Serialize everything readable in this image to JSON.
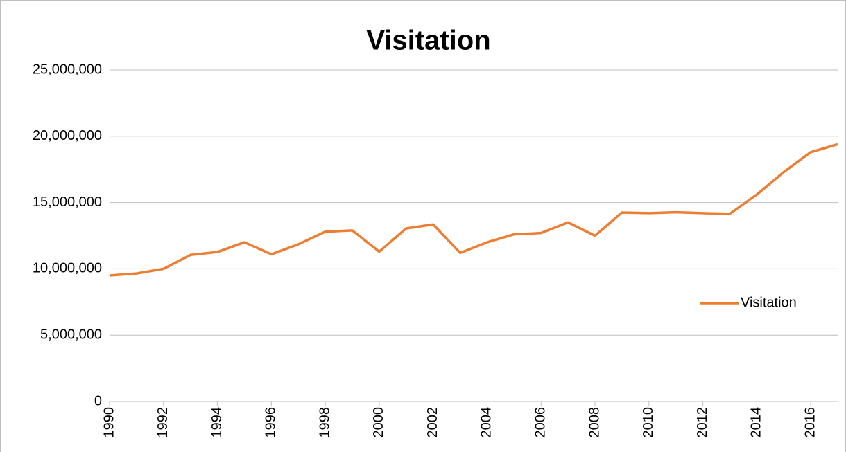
{
  "chart_data": {
    "type": "line",
    "title": "Visitation",
    "x": [
      1990,
      1991,
      1992,
      1993,
      1994,
      1995,
      1996,
      1997,
      1998,
      1999,
      2000,
      2001,
      2002,
      2003,
      2004,
      2005,
      2006,
      2007,
      2008,
      2009,
      2010,
      2011,
      2012,
      2013,
      2014,
      2015,
      2016,
      2017
    ],
    "series": [
      {
        "name": "Visitation",
        "color": "#ed7d31",
        "values": [
          9500000,
          9650000,
          10000000,
          11050000,
          11270000,
          12000000,
          11100000,
          11850000,
          12800000,
          12900000,
          11300000,
          13050000,
          13350000,
          11200000,
          12000000,
          12600000,
          12700000,
          13500000,
          12500000,
          14250000,
          14200000,
          14270000,
          14200000,
          14150000,
          15600000,
          17300000,
          18800000,
          19400000
        ]
      }
    ],
    "xlim": [
      1990,
      2017
    ],
    "xticks": [
      1990,
      1992,
      1994,
      1996,
      1998,
      2000,
      2002,
      2004,
      2006,
      2008,
      2010,
      2012,
      2014,
      2016
    ],
    "ylim": [
      0,
      25000000
    ],
    "yticks": [
      0,
      {
        "value": 5000000,
        "label": "5,000,000"
      },
      {
        "value": 10000000,
        "label": "10,000,000"
      },
      {
        "value": 15000000,
        "label": "15,000,000"
      },
      {
        "value": 20000000,
        "label": "20,000,000"
      },
      {
        "value": 25000000,
        "label": "25,000,000"
      }
    ],
    "grid": true,
    "legend": "right"
  }
}
